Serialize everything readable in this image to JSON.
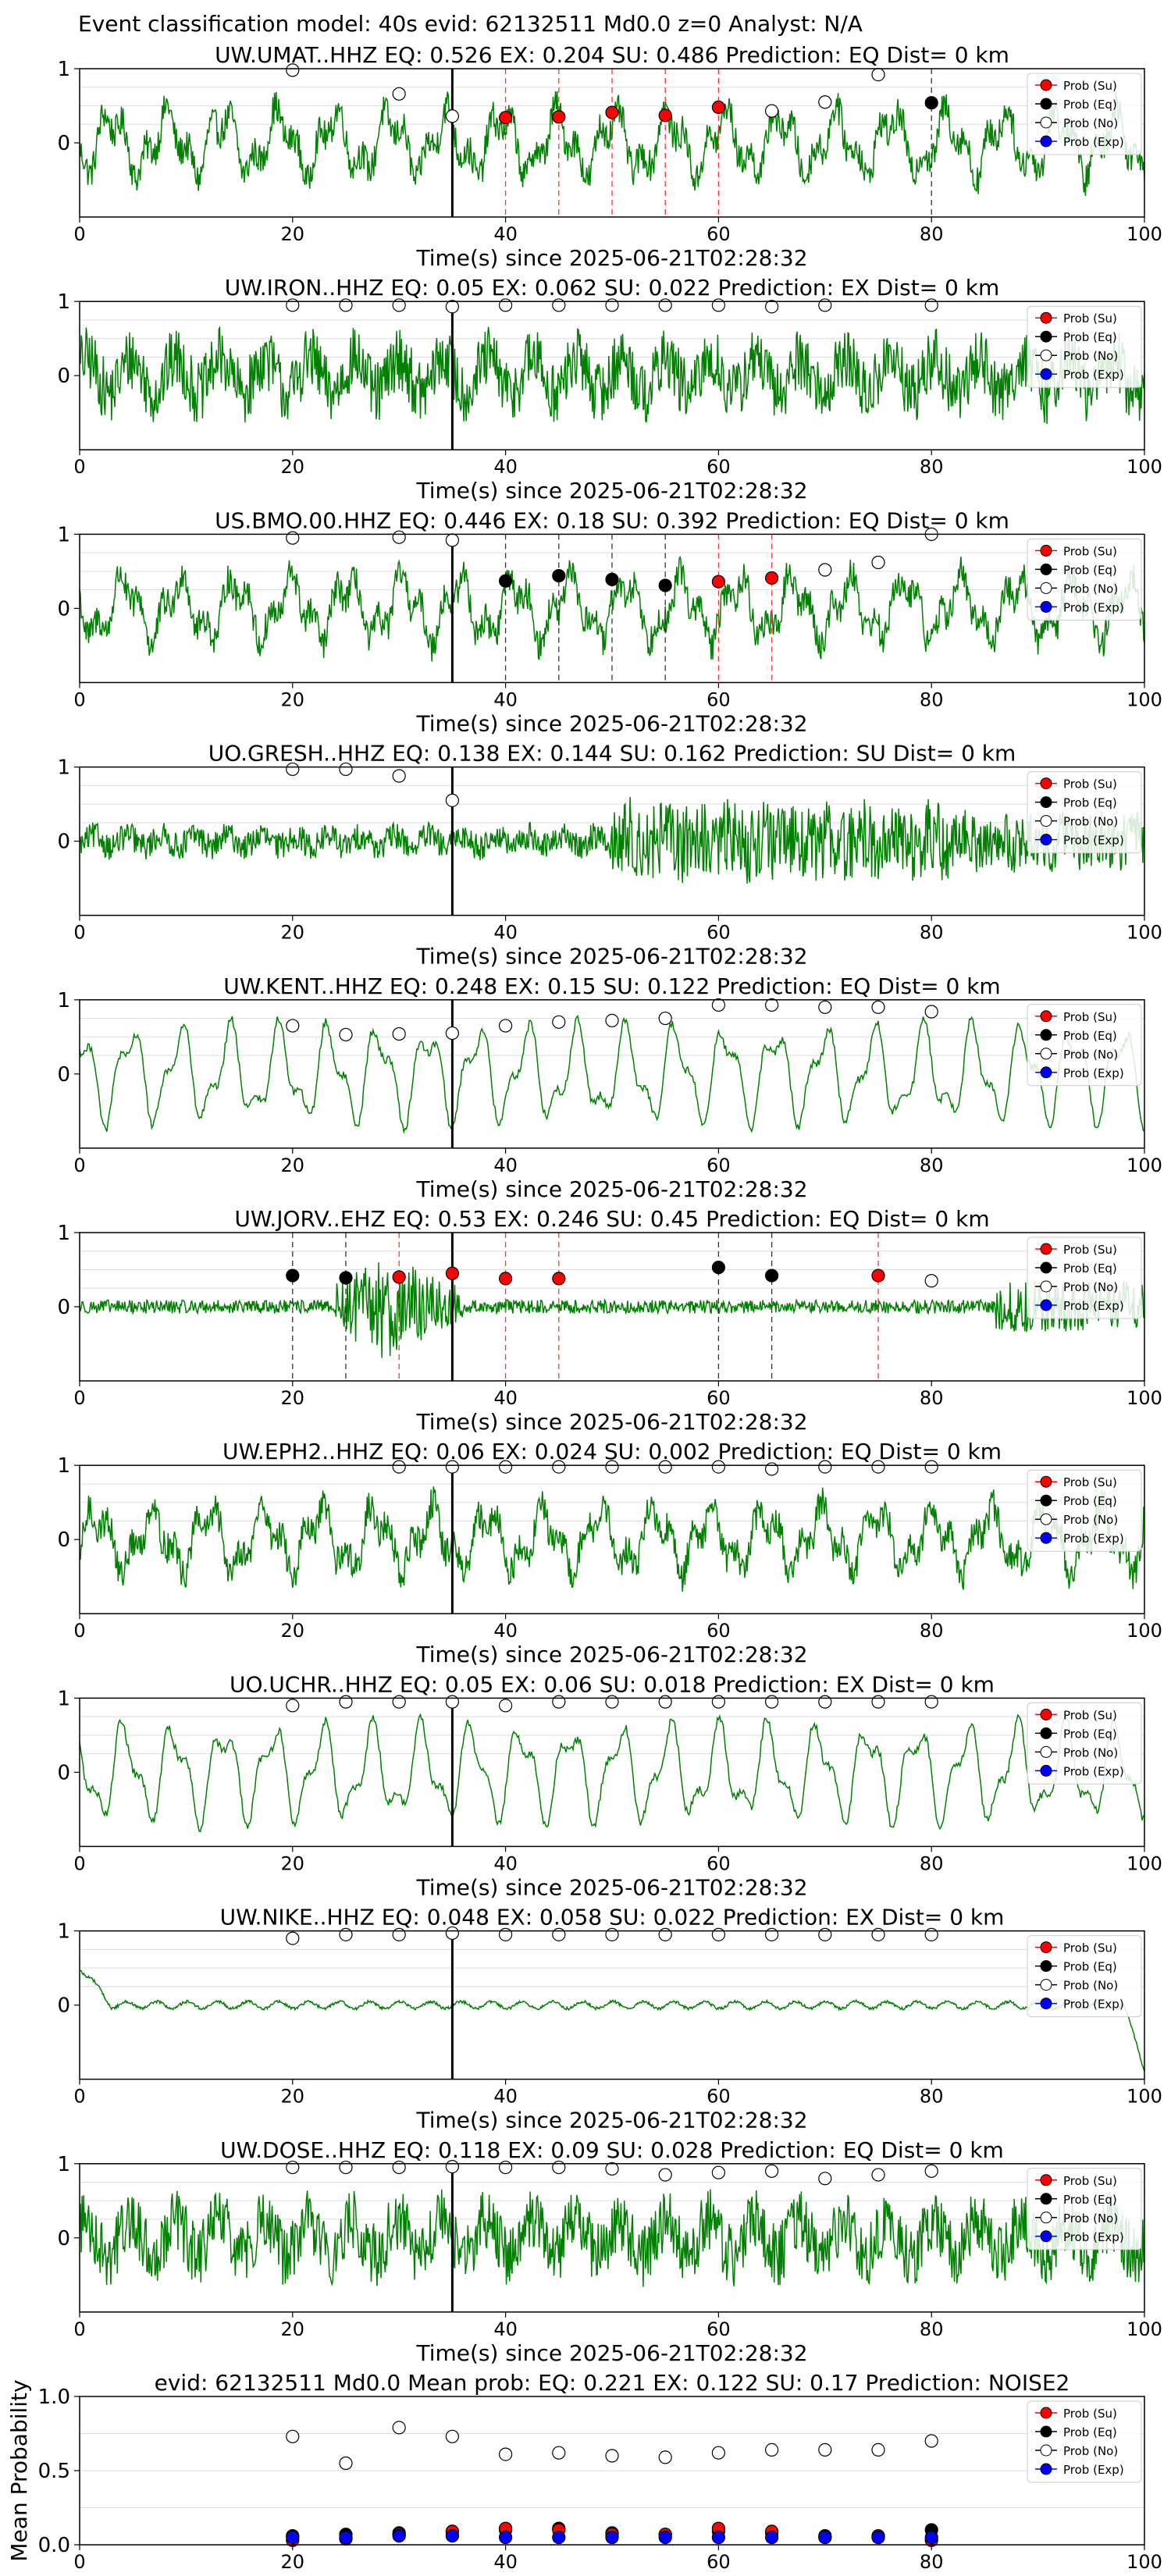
{
  "figure": {
    "suptitle": "Event classification model: 40s evid: 62132511 Md0.0 z=0 Analyst: N/A",
    "xlabel": "Time(s) since 2025-06-21T02:28:32"
  },
  "legend_labels": [
    "Prob (Su)",
    "Prob (Eq)",
    "Prob (No)",
    "Prob (Exp)"
  ],
  "colors": {
    "trace": "#008000",
    "su": "#ff0000",
    "eq": "#000000",
    "no": "#ffffff",
    "exp": "#0000ff",
    "event_line": "#000000"
  },
  "chart_data": [
    {
      "type": "line",
      "title": "UW.UMAT..HHZ   EQ: 0.526  EX: 0.204  SU: 0.486   Prediction: EQ    Dist= 0 km",
      "xlim": [
        0,
        100
      ],
      "xticks": [
        0,
        20,
        40,
        60,
        80,
        100
      ],
      "yticks": [
        0,
        1
      ],
      "event_time": 35,
      "trace_style": "medium",
      "markers": [
        {
          "x": 20,
          "y": 0.98,
          "cls": "no"
        },
        {
          "x": 30,
          "y": 0.66,
          "cls": "no"
        },
        {
          "x": 35,
          "y": 0.36,
          "cls": "no"
        },
        {
          "x": 40,
          "y": 0.34,
          "cls": "su",
          "vline": "su"
        },
        {
          "x": 45,
          "y": 0.35,
          "cls": "su",
          "vline": "su"
        },
        {
          "x": 50,
          "y": 0.41,
          "cls": "su",
          "vline": "su"
        },
        {
          "x": 55,
          "y": 0.37,
          "cls": "su",
          "vline": "su"
        },
        {
          "x": 60,
          "y": 0.48,
          "cls": "su",
          "vline": "su"
        },
        {
          "x": 65,
          "y": 0.43,
          "cls": "no"
        },
        {
          "x": 70,
          "y": 0.55,
          "cls": "no"
        },
        {
          "x": 75,
          "y": 0.92,
          "cls": "no"
        },
        {
          "x": 80,
          "y": 0.54,
          "cls": "eq",
          "vline": "eq"
        }
      ]
    },
    {
      "type": "line",
      "title": "UW.IRON..HHZ   EQ: 0.05  EX: 0.062  SU: 0.022   Prediction: EX    Dist= 0 km",
      "xlim": [
        0,
        100
      ],
      "xticks": [
        0,
        20,
        40,
        60,
        80,
        100
      ],
      "yticks": [
        0,
        1
      ],
      "event_time": 35,
      "trace_style": "dense",
      "markers": [
        {
          "x": 20,
          "y": 0.95,
          "cls": "no"
        },
        {
          "x": 25,
          "y": 0.95,
          "cls": "no"
        },
        {
          "x": 30,
          "y": 0.95,
          "cls": "no"
        },
        {
          "x": 35,
          "y": 0.93,
          "cls": "no"
        },
        {
          "x": 40,
          "y": 0.95,
          "cls": "no"
        },
        {
          "x": 45,
          "y": 0.95,
          "cls": "no"
        },
        {
          "x": 50,
          "y": 0.95,
          "cls": "no"
        },
        {
          "x": 55,
          "y": 0.95,
          "cls": "no"
        },
        {
          "x": 60,
          "y": 0.95,
          "cls": "no"
        },
        {
          "x": 65,
          "y": 0.93,
          "cls": "no"
        },
        {
          "x": 70,
          "y": 0.95,
          "cls": "no"
        },
        {
          "x": 80,
          "y": 0.95,
          "cls": "no"
        }
      ]
    },
    {
      "type": "line",
      "title": "US.BMO.00.HHZ   EQ: 0.446  EX: 0.18  SU: 0.392   Prediction: EQ    Dist= 0 km",
      "xlim": [
        0,
        100
      ],
      "xticks": [
        0,
        20,
        40,
        60,
        80,
        100
      ],
      "yticks": [
        0,
        1
      ],
      "event_time": 35,
      "trace_style": "medium",
      "markers": [
        {
          "x": 20,
          "y": 0.95,
          "cls": "no"
        },
        {
          "x": 30,
          "y": 0.96,
          "cls": "no"
        },
        {
          "x": 35,
          "y": 0.92,
          "cls": "no"
        },
        {
          "x": 40,
          "y": 0.37,
          "cls": "eq",
          "vline": "eq"
        },
        {
          "x": 45,
          "y": 0.44,
          "cls": "eq",
          "vline": "eq"
        },
        {
          "x": 50,
          "y": 0.39,
          "cls": "eq",
          "vline": "eq"
        },
        {
          "x": 55,
          "y": 0.31,
          "cls": "eq",
          "vline": "eq"
        },
        {
          "x": 60,
          "y": 0.36,
          "cls": "su",
          "vline": "su"
        },
        {
          "x": 65,
          "y": 0.41,
          "cls": "su",
          "vline": "su"
        },
        {
          "x": 70,
          "y": 0.52,
          "cls": "no"
        },
        {
          "x": 75,
          "y": 0.62,
          "cls": "no"
        },
        {
          "x": 80,
          "y": 1.0,
          "cls": "no"
        }
      ]
    },
    {
      "type": "line",
      "title": "UO.GRESH..HHZ   EQ: 0.138  EX: 0.144  SU: 0.162   Prediction: SU    Dist= 0 km",
      "xlim": [
        0,
        100
      ],
      "xticks": [
        0,
        20,
        40,
        60,
        80,
        100
      ],
      "yticks": [
        0,
        1
      ],
      "event_time": 35,
      "trace_style": "burst",
      "markers": [
        {
          "x": 20,
          "y": 0.97,
          "cls": "no"
        },
        {
          "x": 25,
          "y": 0.97,
          "cls": "no"
        },
        {
          "x": 30,
          "y": 0.88,
          "cls": "no"
        },
        {
          "x": 35,
          "y": 0.55,
          "cls": "no"
        }
      ]
    },
    {
      "type": "line",
      "title": "UW.KENT..HHZ   EQ: 0.248  EX: 0.15  SU: 0.122   Prediction: EQ    Dist= 0 km",
      "xlim": [
        0,
        100
      ],
      "xticks": [
        0,
        20,
        40,
        60,
        80,
        100
      ],
      "yticks": [
        0,
        1
      ],
      "event_time": 35,
      "trace_style": "smooth",
      "markers": [
        {
          "x": 20,
          "y": 0.65,
          "cls": "no"
        },
        {
          "x": 25,
          "y": 0.53,
          "cls": "no"
        },
        {
          "x": 30,
          "y": 0.54,
          "cls": "no"
        },
        {
          "x": 35,
          "y": 0.55,
          "cls": "no"
        },
        {
          "x": 40,
          "y": 0.65,
          "cls": "no"
        },
        {
          "x": 45,
          "y": 0.7,
          "cls": "no"
        },
        {
          "x": 50,
          "y": 0.72,
          "cls": "no"
        },
        {
          "x": 55,
          "y": 0.75,
          "cls": "no"
        },
        {
          "x": 60,
          "y": 0.93,
          "cls": "no"
        },
        {
          "x": 65,
          "y": 0.93,
          "cls": "no"
        },
        {
          "x": 70,
          "y": 0.9,
          "cls": "no"
        },
        {
          "x": 75,
          "y": 0.9,
          "cls": "no"
        },
        {
          "x": 80,
          "y": 0.84,
          "cls": "no"
        }
      ]
    },
    {
      "type": "line",
      "title": "UW.JORV..EHZ   EQ: 0.53  EX: 0.246  SU: 0.45   Prediction: EQ    Dist= 0 km",
      "xlim": [
        0,
        100
      ],
      "xticks": [
        0,
        20,
        40,
        60,
        80,
        100
      ],
      "yticks": [
        0,
        1
      ],
      "event_time": 35,
      "trace_style": "quake",
      "markers": [
        {
          "x": 20,
          "y": 0.42,
          "cls": "eq",
          "vline": "eq"
        },
        {
          "x": 25,
          "y": 0.39,
          "cls": "eq",
          "vline": "eq"
        },
        {
          "x": 30,
          "y": 0.4,
          "cls": "su",
          "vline": "su"
        },
        {
          "x": 35,
          "y": 0.45,
          "cls": "su"
        },
        {
          "x": 40,
          "y": 0.38,
          "cls": "su",
          "vline": "su"
        },
        {
          "x": 45,
          "y": 0.38,
          "cls": "su",
          "vline": "su"
        },
        {
          "x": 60,
          "y": 0.53,
          "cls": "eq",
          "vline": "eq"
        },
        {
          "x": 65,
          "y": 0.42,
          "cls": "eq",
          "vline": "eq"
        },
        {
          "x": 75,
          "y": 0.42,
          "cls": "su",
          "vline": "su"
        },
        {
          "x": 80,
          "y": 0.35,
          "cls": "no"
        }
      ]
    },
    {
      "type": "line",
      "title": "UW.EPH2..HHZ   EQ: 0.06  EX: 0.024  SU: 0.002   Prediction: EQ    Dist= 0 km",
      "xlim": [
        0,
        100
      ],
      "xticks": [
        0,
        20,
        40,
        60,
        80,
        100
      ],
      "yticks": [
        0,
        1
      ],
      "event_time": 35,
      "trace_style": "medium",
      "markers": [
        {
          "x": 30,
          "y": 0.98,
          "cls": "no"
        },
        {
          "x": 35,
          "y": 0.98,
          "cls": "no"
        },
        {
          "x": 40,
          "y": 0.98,
          "cls": "no"
        },
        {
          "x": 45,
          "y": 0.98,
          "cls": "no"
        },
        {
          "x": 50,
          "y": 0.98,
          "cls": "no"
        },
        {
          "x": 55,
          "y": 0.98,
          "cls": "no"
        },
        {
          "x": 60,
          "y": 0.98,
          "cls": "no"
        },
        {
          "x": 65,
          "y": 0.95,
          "cls": "no"
        },
        {
          "x": 70,
          "y": 0.98,
          "cls": "no"
        },
        {
          "x": 75,
          "y": 0.98,
          "cls": "no"
        },
        {
          "x": 80,
          "y": 0.98,
          "cls": "no"
        }
      ]
    },
    {
      "type": "line",
      "title": "UO.UCHR..HHZ   EQ: 0.05  EX: 0.06  SU: 0.018   Prediction: EX    Dist= 0 km",
      "xlim": [
        0,
        100
      ],
      "xticks": [
        0,
        20,
        40,
        60,
        80,
        100
      ],
      "yticks": [
        0,
        1
      ],
      "event_time": 35,
      "trace_style": "smooth",
      "markers": [
        {
          "x": 20,
          "y": 0.9,
          "cls": "no"
        },
        {
          "x": 25,
          "y": 0.95,
          "cls": "no"
        },
        {
          "x": 30,
          "y": 0.95,
          "cls": "no"
        },
        {
          "x": 35,
          "y": 0.95,
          "cls": "no"
        },
        {
          "x": 40,
          "y": 0.9,
          "cls": "no"
        },
        {
          "x": 45,
          "y": 0.95,
          "cls": "no"
        },
        {
          "x": 50,
          "y": 0.95,
          "cls": "no"
        },
        {
          "x": 55,
          "y": 0.95,
          "cls": "no"
        },
        {
          "x": 60,
          "y": 0.95,
          "cls": "no"
        },
        {
          "x": 65,
          "y": 0.95,
          "cls": "no"
        },
        {
          "x": 70,
          "y": 0.95,
          "cls": "no"
        },
        {
          "x": 75,
          "y": 0.95,
          "cls": "no"
        },
        {
          "x": 80,
          "y": 0.95,
          "cls": "no"
        }
      ]
    },
    {
      "type": "line",
      "title": "UW.NIKE..HHZ   EQ: 0.048  EX: 0.058  SU: 0.022   Prediction: EX    Dist= 0 km",
      "xlim": [
        0,
        100
      ],
      "xticks": [
        0,
        20,
        40,
        60,
        80,
        100
      ],
      "yticks": [
        0,
        1
      ],
      "event_time": 35,
      "trace_style": "flat",
      "markers": [
        {
          "x": 20,
          "y": 0.9,
          "cls": "no"
        },
        {
          "x": 25,
          "y": 0.95,
          "cls": "no"
        },
        {
          "x": 30,
          "y": 0.95,
          "cls": "no"
        },
        {
          "x": 35,
          "y": 0.97,
          "cls": "no"
        },
        {
          "x": 40,
          "y": 0.95,
          "cls": "no"
        },
        {
          "x": 45,
          "y": 0.95,
          "cls": "no"
        },
        {
          "x": 50,
          "y": 0.95,
          "cls": "no"
        },
        {
          "x": 55,
          "y": 0.95,
          "cls": "no"
        },
        {
          "x": 60,
          "y": 0.95,
          "cls": "no"
        },
        {
          "x": 65,
          "y": 0.95,
          "cls": "no"
        },
        {
          "x": 70,
          "y": 0.95,
          "cls": "no"
        },
        {
          "x": 75,
          "y": 0.95,
          "cls": "no"
        },
        {
          "x": 80,
          "y": 0.95,
          "cls": "no"
        }
      ]
    },
    {
      "type": "line",
      "title": "UW.DOSE..HHZ   EQ: 0.118  EX: 0.09  SU: 0.028   Prediction: EQ    Dist= 0 km",
      "xlim": [
        0,
        100
      ],
      "xticks": [
        0,
        20,
        40,
        60,
        80,
        100
      ],
      "yticks": [
        0,
        1
      ],
      "event_time": 35,
      "trace_style": "dense",
      "markers": [
        {
          "x": 20,
          "y": 0.95,
          "cls": "no"
        },
        {
          "x": 25,
          "y": 0.95,
          "cls": "no"
        },
        {
          "x": 30,
          "y": 0.95,
          "cls": "no"
        },
        {
          "x": 35,
          "y": 0.96,
          "cls": "no"
        },
        {
          "x": 40,
          "y": 0.95,
          "cls": "no"
        },
        {
          "x": 45,
          "y": 0.95,
          "cls": "no"
        },
        {
          "x": 50,
          "y": 0.93,
          "cls": "no"
        },
        {
          "x": 55,
          "y": 0.85,
          "cls": "no"
        },
        {
          "x": 60,
          "y": 0.88,
          "cls": "no"
        },
        {
          "x": 65,
          "y": 0.9,
          "cls": "no"
        },
        {
          "x": 70,
          "y": 0.8,
          "cls": "no"
        },
        {
          "x": 75,
          "y": 0.85,
          "cls": "no"
        },
        {
          "x": 80,
          "y": 0.9,
          "cls": "no"
        }
      ]
    },
    {
      "type": "scatter",
      "title": "evid: 62132511  Md0.0   Mean prob:   EQ: 0.221  EX: 0.122  SU: 0.17   Prediction: NOISE2",
      "ylabel": "Mean Probability",
      "xlim": [
        0,
        100
      ],
      "ylim": [
        0,
        1
      ],
      "xticks": [
        0,
        20,
        40,
        60,
        80,
        100
      ],
      "yticks": [
        0.0,
        0.5,
        1.0
      ],
      "yticklabels": [
        "0.0",
        "0.5",
        "1.0"
      ],
      "x": [
        20,
        25,
        30,
        35,
        40,
        45,
        50,
        55,
        60,
        65,
        70,
        75,
        80
      ],
      "series": [
        {
          "cls": "no",
          "values": [
            0.73,
            0.55,
            0.79,
            0.73,
            0.61,
            0.62,
            0.6,
            0.59,
            0.62,
            0.64,
            0.64,
            0.64,
            0.7
          ]
        },
        {
          "cls": "eq",
          "values": [
            0.06,
            0.07,
            0.08,
            0.09,
            0.1,
            0.11,
            0.08,
            0.07,
            0.09,
            0.08,
            0.06,
            0.05,
            0.1
          ]
        },
        {
          "cls": "su",
          "values": [
            0.03,
            0.04,
            0.07,
            0.09,
            0.11,
            0.1,
            0.07,
            0.07,
            0.11,
            0.09,
            0.05,
            0.06,
            0.03
          ]
        },
        {
          "cls": "exp",
          "values": [
            0.05,
            0.05,
            0.06,
            0.06,
            0.05,
            0.05,
            0.05,
            0.05,
            0.05,
            0.05,
            0.05,
            0.05,
            0.05
          ]
        }
      ]
    }
  ]
}
